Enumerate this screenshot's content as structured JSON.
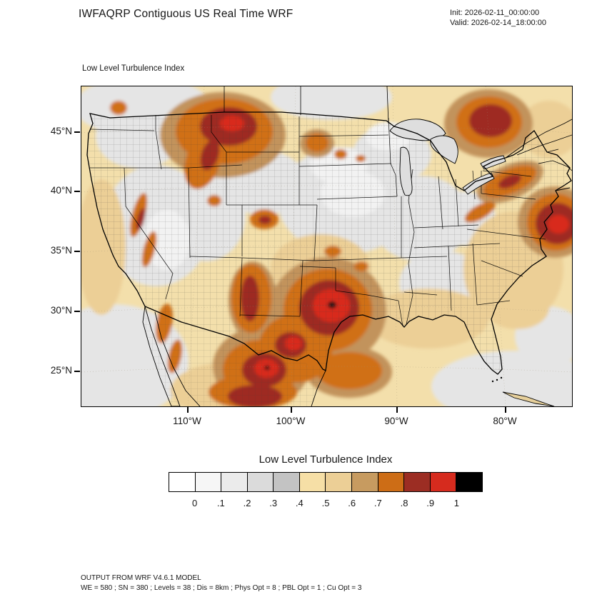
{
  "header": {
    "title": "IWFAQRP Contiguous US Real Time WRF",
    "init_time": "Init: 2026-02-11_00:00:00",
    "valid_time": "Valid: 2026-02-14_18:00:00"
  },
  "map": {
    "field_label": "Low Level Turbulence Index",
    "lat_tick_labels": [
      "45°N",
      "40°N",
      "35°N",
      "30°N",
      "25°N"
    ],
    "lon_tick_labels": [
      "110°W",
      "100°W",
      "90°W",
      "80°W"
    ]
  },
  "colorbar": {
    "title": "Low Level Turbulence Index",
    "tick_labels": [
      "0",
      ".1",
      ".2",
      ".3",
      ".4",
      ".5",
      ".6",
      ".7",
      ".8",
      ".9",
      "1"
    ],
    "colors": [
      "#ffffff",
      "#f6f6f6",
      "#ebebeb",
      "#dbdbdb",
      "#c3c3c3",
      "#f6dfa6",
      "#eccf96",
      "#c79b60",
      "#cd6d16",
      "#9c2d23",
      "#d62b1e",
      "#000000"
    ]
  },
  "footer": {
    "line1": "OUTPUT FROM WRF V4.6.1 MODEL",
    "line2": "WE = 580 ; SN = 380 ; Levels = 38 ; Dis = 8km ; Phys Opt = 8 ; PBL Opt = 1 ; Cu Opt = 3"
  },
  "chart_data": {
    "type": "heatmap",
    "title": "Low Level Turbulence Index",
    "region": "Contiguous United States",
    "model": "WRF V4.6.1",
    "init": "2026-02-11_00:00:00",
    "valid": "2026-02-14_18:00:00",
    "lat_ticks_deg_n": [
      45,
      40,
      35,
      30,
      25
    ],
    "lon_ticks_deg_w": [
      110,
      100,
      90,
      80
    ],
    "value_levels": [
      0,
      0.1,
      0.2,
      0.3,
      0.4,
      0.5,
      0.6,
      0.7,
      0.8,
      0.9,
      1
    ],
    "palette": [
      "#ffffff",
      "#f6f6f6",
      "#ebebeb",
      "#dbdbdb",
      "#c3c3c3",
      "#f6dfa6",
      "#eccf96",
      "#c79b60",
      "#cd6d16",
      "#9c2d23",
      "#d62b1e",
      "#000000"
    ],
    "legend_position": "bottom",
    "notable_maxima": [
      {
        "area": "Montana / Idaho Rockies",
        "approx_value": 0.9
      },
      {
        "area": "Central Texas",
        "approx_value": 1.0
      },
      {
        "area": "New Mexico / Northern Mexico",
        "approx_value": 1.0
      },
      {
        "area": "Atlantic offshore of Mid-Atlantic / New England coast",
        "approx_value": 0.9
      },
      {
        "area": "Southern Ontario / Georgian Bay (Canada)",
        "approx_value": 0.9
      },
      {
        "area": "Gulf of Mexico off Texas coast",
        "approx_value": 0.8
      },
      {
        "area": "Sierra Nevada (California)",
        "approx_value": 0.9
      },
      {
        "area": "Colorado Front Range",
        "approx_value": 0.8
      }
    ]
  }
}
